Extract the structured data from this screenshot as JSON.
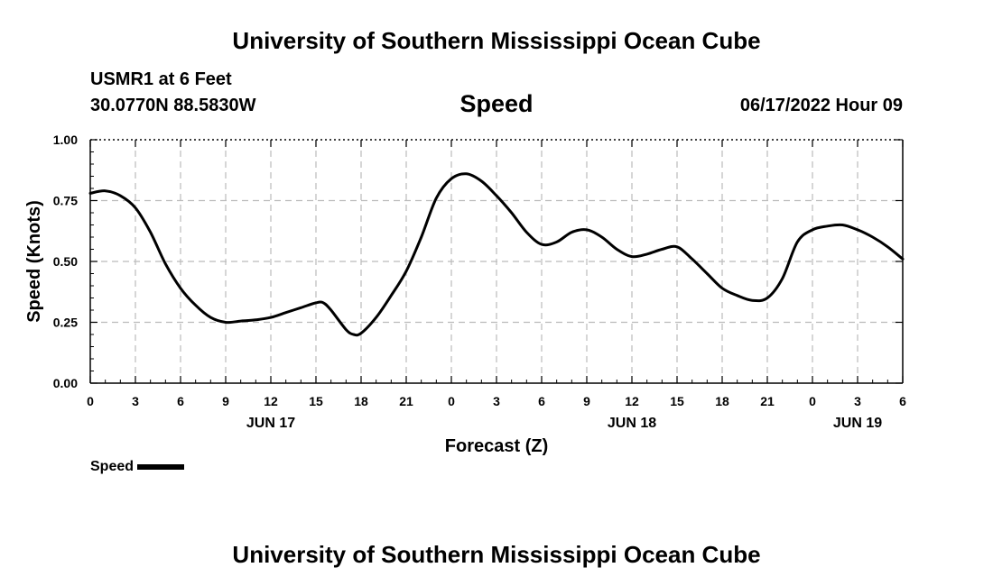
{
  "header": {
    "title": "University of Southern Mississippi Ocean Cube",
    "station": "USMR1 at 6 Feet",
    "coordinates": "30.0770N  88.5830W",
    "datetime": "06/17/2022 Hour 09"
  },
  "footer": {
    "title": "University of Southern Mississippi Ocean Cube"
  },
  "legend": {
    "label": "Speed"
  },
  "colors": {
    "line": "#000000",
    "grid": "#bbbbbb",
    "background": "#ffffff"
  },
  "chart_data": {
    "type": "line",
    "title": "Speed",
    "xlabel": "Forecast (Z)",
    "ylabel": "Speed (Knots)",
    "xlim": [
      0,
      54
    ],
    "ylim": [
      0,
      1
    ],
    "grid": true,
    "legend_position": "bottom-left",
    "y_ticks": [
      0,
      0.25,
      0.5,
      0.75,
      1.0
    ],
    "y_tick_labels": [
      "0.00",
      "0.25",
      "0.50",
      "0.75",
      "1.00"
    ],
    "x_ticks": [
      0,
      3,
      6,
      9,
      12,
      15,
      18,
      21,
      24,
      27,
      30,
      33,
      36,
      39,
      42,
      45,
      48,
      51,
      54
    ],
    "x_tick_labels": [
      "0",
      "3",
      "6",
      "9",
      "12",
      "15",
      "18",
      "21",
      "0",
      "3",
      "6",
      "9",
      "12",
      "15",
      "18",
      "21",
      "0",
      "3",
      "6"
    ],
    "date_labels": [
      {
        "x": 12,
        "label": "JUN 17"
      },
      {
        "x": 36,
        "label": "JUN 18"
      },
      {
        "x": 51,
        "label": "JUN 19"
      }
    ],
    "series": [
      {
        "name": "Speed",
        "x": [
          0,
          1,
          2,
          3,
          4,
          5,
          6,
          7,
          8,
          9,
          10,
          11,
          12,
          13,
          14,
          15,
          15.5,
          16,
          17,
          17.5,
          18,
          19,
          20,
          21,
          22,
          23,
          24,
          25,
          26,
          27,
          28,
          29,
          30,
          31,
          32,
          33,
          34,
          35,
          36,
          37,
          38,
          39,
          40,
          41,
          42,
          43,
          44,
          45,
          46,
          47,
          48,
          49,
          50,
          51,
          52,
          53,
          54
        ],
        "y": [
          0.78,
          0.79,
          0.77,
          0.72,
          0.62,
          0.49,
          0.39,
          0.32,
          0.27,
          0.25,
          0.255,
          0.26,
          0.27,
          0.29,
          0.31,
          0.33,
          0.33,
          0.3,
          0.22,
          0.2,
          0.205,
          0.27,
          0.36,
          0.46,
          0.6,
          0.76,
          0.84,
          0.86,
          0.83,
          0.77,
          0.7,
          0.62,
          0.57,
          0.58,
          0.62,
          0.63,
          0.6,
          0.55,
          0.52,
          0.53,
          0.55,
          0.56,
          0.51,
          0.45,
          0.39,
          0.36,
          0.34,
          0.35,
          0.43,
          0.58,
          0.63,
          0.645,
          0.65,
          0.63,
          0.6,
          0.56,
          0.51
        ]
      }
    ]
  }
}
